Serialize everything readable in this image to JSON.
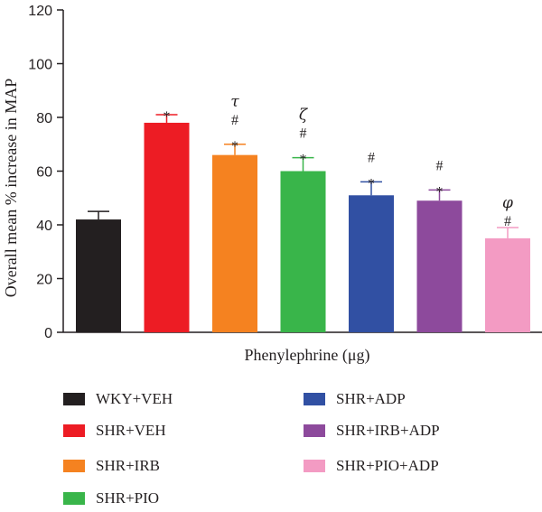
{
  "chart_data": {
    "type": "bar",
    "title": "",
    "xlabel": "Phenylephrine (μg)",
    "ylabel": "Overall mean % increase in MAP",
    "ylim": [
      0,
      120
    ],
    "yticks": [
      0,
      20,
      40,
      60,
      80,
      100,
      120
    ],
    "grid": false,
    "legend_position": "bottom",
    "categories": [
      "WKY+VEH",
      "SHR+VEH",
      "SHR+IRB",
      "SHR+PIO",
      "SHR+ADP",
      "SHR+IRB+ADP",
      "SHR+PIO+ADP"
    ],
    "values": [
      42,
      78,
      66,
      60,
      51,
      49,
      35
    ],
    "errors": [
      3,
      3,
      4,
      5,
      5,
      4,
      4
    ],
    "colors": [
      "#231f20",
      "#ed1c24",
      "#f58220",
      "#39b54a",
      "#3150a3",
      "#8d4a9c",
      "#f39bc3"
    ],
    "annotations": [
      [],
      [
        "*"
      ],
      [
        "τ",
        "#",
        "*"
      ],
      [
        "ζ",
        "#",
        "*"
      ],
      [
        "#",
        "*"
      ],
      [
        "#",
        "*"
      ],
      [
        "φ",
        "#"
      ]
    ]
  }
}
